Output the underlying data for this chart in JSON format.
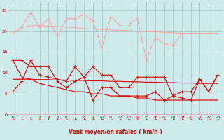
{
  "x": [
    0,
    1,
    2,
    3,
    4,
    5,
    6,
    7,
    8,
    9,
    10,
    11,
    12,
    13,
    14,
    15,
    16,
    17,
    18,
    19,
    20,
    21,
    22,
    23
  ],
  "background_color": "#ceeaea",
  "grid_color": "#aacccc",
  "xlabel": "Vent moyen/en rafales ( km/h )",
  "ylim": [
    0,
    27
  ],
  "xlim": [
    -0.5,
    23.5
  ],
  "yticks": [
    0,
    5,
    10,
    15,
    20,
    25
  ],
  "line1_color": "#ffaaaa",
  "line1_values": [
    19.5,
    21.0,
    24.5,
    21.0,
    23.0,
    18.5,
    23.0,
    23.0,
    24.0,
    22.5,
    16.0,
    23.5,
    21.5,
    21.5,
    23.0,
    13.0,
    18.5,
    17.0,
    16.5,
    19.5,
    19.5,
    19.5,
    19.5,
    19.5
  ],
  "line2_color": "#ffaaaa",
  "line2_values": [
    19.5,
    20.8,
    21.3,
    21.3,
    21.2,
    21.1,
    21.0,
    20.8,
    20.6,
    20.5,
    20.4,
    20.3,
    20.2,
    20.1,
    20.0,
    19.9,
    19.8,
    19.7,
    19.6,
    19.5,
    19.5,
    19.5,
    19.5,
    19.5
  ],
  "line3_color": "#dd0000",
  "line3_values": [
    5.5,
    8.0,
    13.0,
    9.5,
    9.0,
    8.5,
    8.0,
    11.5,
    9.0,
    11.5,
    9.5,
    9.5,
    6.5,
    6.5,
    9.0,
    9.0,
    9.0,
    9.0,
    4.5,
    4.0,
    3.5,
    8.5,
    5.5,
    9.5
  ],
  "line4_color": "#dd0000",
  "line4_values": [
    8.5,
    8.5,
    8.5,
    8.4,
    8.4,
    8.3,
    8.3,
    8.2,
    8.2,
    8.1,
    8.1,
    8.0,
    8.0,
    7.9,
    7.9,
    7.8,
    7.8,
    7.7,
    7.7,
    7.6,
    7.6,
    7.5,
    7.5,
    7.5
  ],
  "line5_color": "#dd0000",
  "line5_values": [
    13.0,
    13.0,
    11.5,
    11.5,
    11.5,
    8.0,
    6.5,
    8.0,
    9.0,
    3.5,
    6.5,
    6.5,
    4.5,
    4.5,
    4.5,
    4.5,
    5.5,
    3.5,
    4.5,
    5.5,
    5.5,
    8.5,
    5.5,
    9.5
  ],
  "line6_color": "#dd0000",
  "line6_values": [
    13.0,
    9.0,
    8.5,
    7.5,
    7.0,
    6.5,
    6.0,
    5.5,
    5.5,
    5.0,
    5.0,
    4.5,
    4.5,
    4.5,
    4.0,
    4.0,
    3.5,
    3.5,
    3.5,
    3.5,
    3.5,
    3.5,
    3.5,
    3.5
  ],
  "arrow_color": "#cc2222",
  "tick_color": "#cc0000",
  "xlabel_color": "#cc0000"
}
